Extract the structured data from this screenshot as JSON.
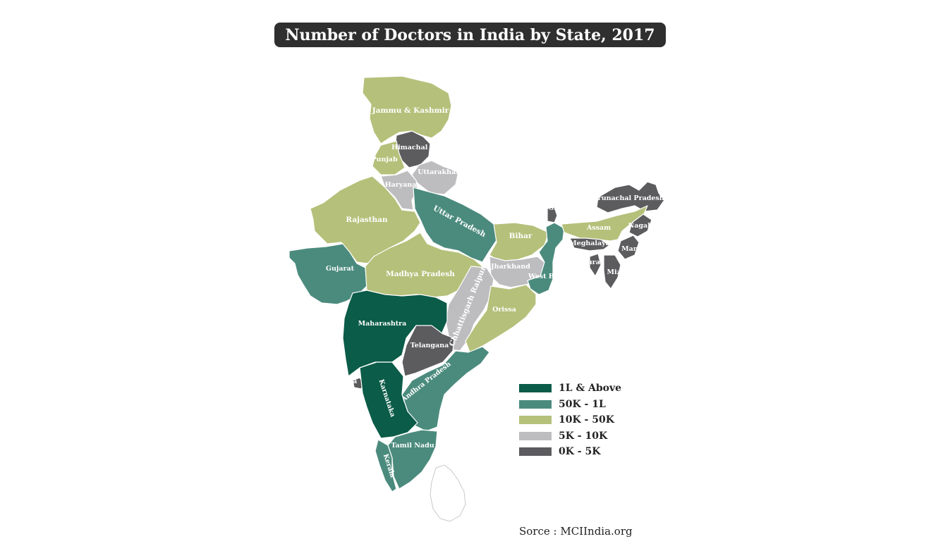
{
  "title": "Number of Doctors in India by State, 2017",
  "source": "Sorce : MCIIndia.org",
  "colors": {
    "c1": "#0b5c48",
    "c2": "#4b8b7d",
    "c3": "#b5c07a",
    "c4": "#bdbdc0",
    "c5": "#5c5c5f",
    "title_bg": "#2f2f2f"
  },
  "legend": [
    {
      "label": "1L & Above",
      "color": "#0b5c48"
    },
    {
      "label": "50K - 1L",
      "color": "#4b8b7d"
    },
    {
      "label": "10K - 50K",
      "color": "#b5c07a"
    },
    {
      "label": "5K - 10K",
      "color": "#bdbdc0"
    },
    {
      "label": "0K - 5K",
      "color": "#5c5c5f"
    }
  ],
  "states": [
    {
      "id": "jammu-kashmir",
      "label": "Jammu & Kashmir",
      "category": "10K - 50K"
    },
    {
      "id": "himachal-pradesh",
      "label": "Himachal Pradesh",
      "category": "0K - 5K"
    },
    {
      "id": "punjab",
      "label": "Punjab",
      "category": "10K - 50K"
    },
    {
      "id": "uttarakhand",
      "label": "Uttarakhand",
      "category": "5K - 10K"
    },
    {
      "id": "haryana",
      "label": "Haryana",
      "category": "5K - 10K"
    },
    {
      "id": "rajasthan",
      "label": "Rajasthan",
      "category": "10K - 50K"
    },
    {
      "id": "uttar-pradesh",
      "label": "Uttar Pradesh",
      "category": "50K - 1L"
    },
    {
      "id": "bihar",
      "label": "Bihar",
      "category": "10K - 50K"
    },
    {
      "id": "gujarat",
      "label": "Gujarat",
      "category": "50K - 1L"
    },
    {
      "id": "madhya-pradesh",
      "label": "Madhya Pradesh",
      "category": "10K - 50K"
    },
    {
      "id": "jharkhand",
      "label": "Jharkhand",
      "category": "5K - 10K"
    },
    {
      "id": "west-bengal",
      "label": "West Bengal",
      "category": "50K - 1L"
    },
    {
      "id": "chhattisgarh",
      "label": "Chhattisgarh Raipur",
      "category": "5K - 10K"
    },
    {
      "id": "orissa",
      "label": "Orissa",
      "category": "10K - 50K"
    },
    {
      "id": "maharashtra",
      "label": "Maharashtra",
      "category": "1L & Above"
    },
    {
      "id": "telangana",
      "label": "Telangana",
      "category": "0K - 5K"
    },
    {
      "id": "andhra-pradesh",
      "label": "Andhra Pradesh",
      "category": "50K - 1L"
    },
    {
      "id": "goa",
      "label": "Goa",
      "category": "0K - 5K"
    },
    {
      "id": "karnataka",
      "label": "Karnataka",
      "category": "1L & Above"
    },
    {
      "id": "tamil-nadu",
      "label": "Tamil Nadu",
      "category": "50K - 1L"
    },
    {
      "id": "kerala",
      "label": "Kerala",
      "category": "50K - 1L"
    },
    {
      "id": "sikkim",
      "label": "Sikkim",
      "category": "0K - 5K"
    },
    {
      "id": "arunachal-pradesh",
      "label": "Arunachal Pradesh",
      "category": "0K - 5K"
    },
    {
      "id": "assam",
      "label": "Assam",
      "category": "10K - 50K"
    },
    {
      "id": "nagaland",
      "label": "Nagaland",
      "category": "0K - 5K"
    },
    {
      "id": "meghalaya",
      "label": "Meghalaya",
      "category": "0K - 5K"
    },
    {
      "id": "manipur",
      "label": "Manipur",
      "category": "0K - 5K"
    },
    {
      "id": "tripura",
      "label": "Tripura",
      "category": "0K - 5K"
    },
    {
      "id": "mizoram",
      "label": "Mizoram",
      "category": "0K - 5K"
    }
  ]
}
